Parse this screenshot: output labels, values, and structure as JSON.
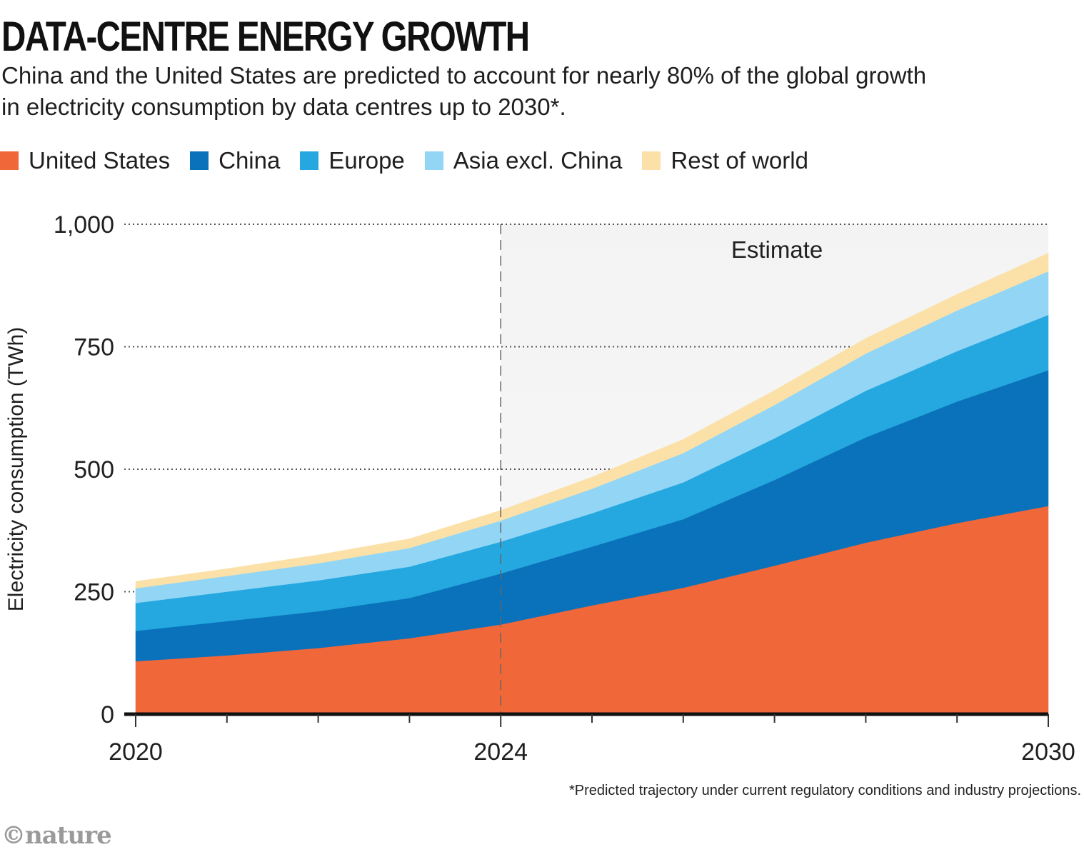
{
  "header": {
    "title": "DATA-CENTRE ENERGY GROWTH",
    "subtitle": "China and the United States are predicted to account for nearly 80% of the global growth in electricity consumption by data centres up to 2030*."
  },
  "footnote": "*Predicted trajectory under current regulatory conditions and industry projections.",
  "brand": "©nature",
  "chart_data": {
    "type": "area",
    "stacked": true,
    "x": [
      2020,
      2021,
      2022,
      2023,
      2024,
      2025,
      2026,
      2027,
      2028,
      2029,
      2030
    ],
    "series": [
      {
        "name": "United States",
        "color": "#f0673a",
        "values": [
          108,
          120,
          135,
          155,
          183,
          222,
          258,
          303,
          350,
          390,
          425
        ]
      },
      {
        "name": "China",
        "color": "#0a72ba",
        "values": [
          62,
          70,
          75,
          82,
          104,
          120,
          140,
          175,
          215,
          248,
          277
        ]
      },
      {
        "name": "Europe",
        "color": "#24a8df",
        "values": [
          57,
          60,
          63,
          64,
          65,
          68,
          75,
          85,
          95,
          103,
          113
        ]
      },
      {
        "name": "Asia excl. China",
        "color": "#93d5f5",
        "values": [
          30,
          32,
          35,
          38,
          43,
          50,
          60,
          68,
          76,
          83,
          89
        ]
      },
      {
        "name": "Rest of world",
        "color": "#fbe1a8",
        "values": [
          14,
          15,
          17,
          19,
          21,
          24,
          28,
          30,
          31,
          33,
          37
        ]
      }
    ],
    "ylabel": "Electricity consumption (TWh)",
    "ylim": [
      0,
      1000
    ],
    "yticks": [
      0,
      250,
      500,
      750,
      1000
    ],
    "ytick_labels": [
      "0",
      "250",
      "500",
      "750",
      "1,000"
    ],
    "xlim": [
      2020,
      2030
    ],
    "xticks_labeled": [
      2020,
      2024,
      2030
    ],
    "xtick_labels": [
      "2020",
      "2024",
      "2030"
    ],
    "estimate_start": 2024,
    "estimate_label": "Estimate",
    "grid": "dotted horizontal",
    "legend_position": "top"
  }
}
